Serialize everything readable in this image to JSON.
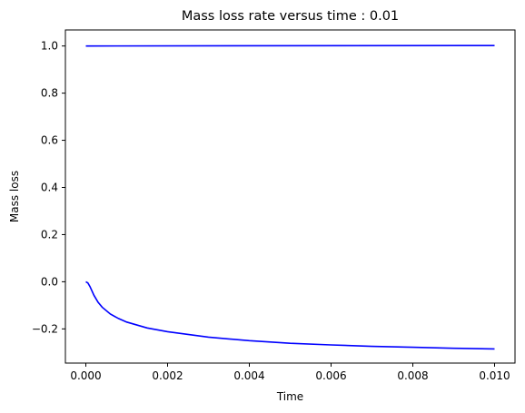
{
  "chart_data": {
    "type": "line",
    "title": "Mass loss rate versus time : 0.01",
    "xlabel": "Time",
    "ylabel": "Mass loss",
    "xlim": [
      -0.0005,
      0.0105
    ],
    "ylim": [
      -0.345,
      1.068
    ],
    "x_ticks": [
      0.0,
      0.002,
      0.004,
      0.006,
      0.008,
      0.01
    ],
    "x_tick_labels": [
      "0.000",
      "0.002",
      "0.004",
      "0.006",
      "0.008",
      "0.010"
    ],
    "y_ticks": [
      -0.2,
      0.0,
      0.2,
      0.4,
      0.6,
      0.8,
      1.0
    ],
    "y_tick_labels": [
      "−0.2",
      "0.0",
      "0.2",
      "0.4",
      "0.6",
      "0.8",
      "1.0"
    ],
    "grid": false,
    "series": [
      {
        "color": "#0000ff",
        "x": [
          0.0,
          0.01
        ],
        "y": [
          1.0,
          1.002
        ]
      },
      {
        "color": "#0000ff",
        "x": [
          0.0,
          5e-05,
          0.0001,
          0.0002,
          0.0003,
          0.0004,
          0.0006,
          0.0008,
          0.001,
          0.0015,
          0.002,
          0.003,
          0.004,
          0.005,
          0.006,
          0.007,
          0.008,
          0.009,
          0.01
        ],
        "y": [
          0.0,
          -0.005,
          -0.02,
          -0.058,
          -0.087,
          -0.108,
          -0.137,
          -0.156,
          -0.171,
          -0.196,
          -0.212,
          -0.235,
          -0.25,
          -0.261,
          -0.268,
          -0.274,
          -0.278,
          -0.282,
          -0.285
        ]
      }
    ]
  }
}
